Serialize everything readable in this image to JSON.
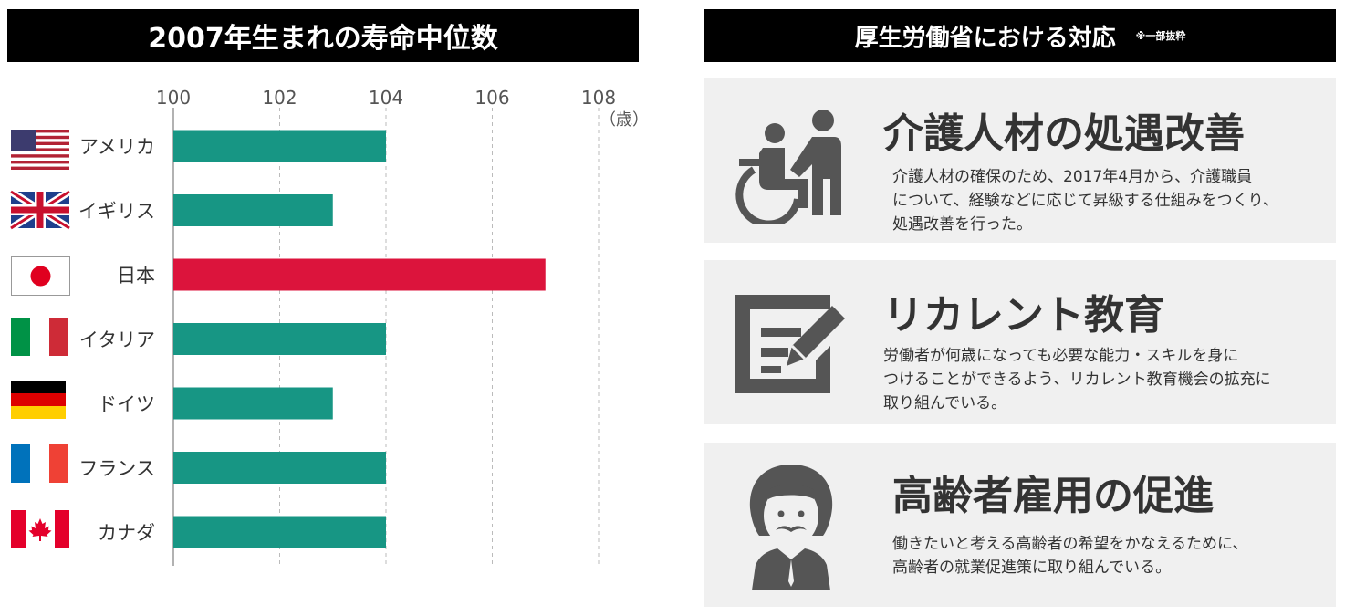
{
  "left_header": {
    "title": "2007年生まれの寿命中位数"
  },
  "chart_data": {
    "type": "bar",
    "orientation": "horizontal",
    "title": "2007年生まれの寿命中位数",
    "unit_label": "（歳）",
    "categories": [
      "アメリカ",
      "イギリス",
      "日本",
      "イタリア",
      "ドイツ",
      "フランス",
      "カナダ"
    ],
    "values": [
      104,
      103,
      107,
      104,
      103,
      104,
      104
    ],
    "xlim": [
      100,
      108
    ],
    "xticks": [
      "100",
      "102",
      "104",
      "106",
      "108"
    ],
    "grid": true,
    "colors": {
      "default": "#179684",
      "highlight": "#dc143c"
    },
    "highlight_category": "日本"
  },
  "right_header": {
    "title": "厚生労働省における対応",
    "note": "※一部抜粋"
  },
  "panels": [
    {
      "icon": "wheelchair-assist-icon",
      "title": "介護人材の処遇改善",
      "lines": [
        "介護人材の確保のため、2017年4月から、介護職員",
        "について、経験などに応じて昇級する仕組みをつくり、",
        "処遇改善を行った。"
      ]
    },
    {
      "icon": "document-pen-icon",
      "title": "リカレント教育",
      "lines": [
        "労働者が何歳になっても必要な能力・スキルを身に",
        "つけることができるよう、リカレント教育機会の拡充に",
        "取り組んでいる。"
      ]
    },
    {
      "icon": "elderly-man-icon",
      "title": "高齢者雇用の促進",
      "lines": [
        "働きたいと考える高齢者の希望をかなえるために、",
        "高齢者の就業促進策に取り組んでいる。"
      ]
    }
  ],
  "colors": {
    "panel_bg": "#f0f0f0",
    "icon": "#555555"
  }
}
